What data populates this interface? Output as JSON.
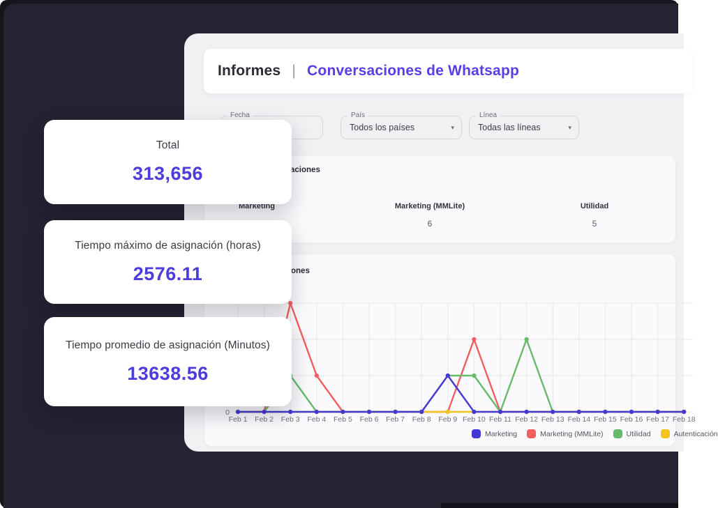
{
  "colors": {
    "background_outer": "#15151d",
    "background_panel": "#232331",
    "window_bg": "#f1f1f4",
    "card_bg": "#fafafc",
    "accent_purple": "#5a3ce8",
    "value_purple": "#4b3cdb",
    "series_blue": "#4539d6",
    "series_red": "#f15e5e",
    "series_green": "#66bb6a",
    "series_yellow": "#f2c41c"
  },
  "header": {
    "title_left": "Informes",
    "title_separator": "|",
    "title_right": "Conversaciones de Whatsapp"
  },
  "filters": {
    "fecha": {
      "label": "Fecha",
      "value": ""
    },
    "pais": {
      "label": "País",
      "value": "Todos los países",
      "arrow": "▾"
    },
    "linea": {
      "label": "Línea",
      "value": "Todas las líneas",
      "arrow": "▾"
    }
  },
  "stats_cards": [
    {
      "label": "Total",
      "value": "313,656"
    },
    {
      "label": "Tiempo máximo de asignación (horas)",
      "value": "2576.11"
    },
    {
      "label": "Tiempo promedio de asignación (Minutos)",
      "value": "13638.56"
    }
  ],
  "table": {
    "title": "Conversaciones",
    "columns": [
      {
        "header": "Marketing",
        "value": ""
      },
      {
        "header": "Marketing (MMLite)",
        "value": "6"
      },
      {
        "header": "Utilidad",
        "value": "5"
      }
    ]
  },
  "chart_section": {
    "title": "Conversaciones"
  },
  "chart_data": {
    "type": "line",
    "title": "Conversaciones",
    "categories": [
      "Feb 1",
      "Feb 2",
      "Feb 3",
      "Feb 4",
      "Feb 5",
      "Feb 6",
      "Feb 7",
      "Feb 8",
      "Feb 9",
      "Feb 10",
      "Feb 11",
      "Feb 12",
      "Feb 13",
      "Feb 14",
      "Feb 15",
      "Feb 16",
      "Feb 17",
      "Feb 18"
    ],
    "series": [
      {
        "name": "Marketing",
        "color": "#4539d6",
        "values": [
          0,
          0,
          0,
          0,
          0,
          0,
          0,
          0,
          2,
          0,
          0,
          0,
          0,
          0,
          0,
          0,
          0,
          0
        ]
      },
      {
        "name": "Marketing (MMLite)",
        "color": "#f15e5e",
        "values": [
          0,
          0,
          6,
          2,
          0,
          0,
          0,
          0,
          0,
          4,
          0,
          0,
          0,
          0,
          0,
          0,
          0,
          0
        ]
      },
      {
        "name": "Utilidad",
        "color": "#66bb6a",
        "values": [
          0,
          0,
          2,
          0,
          0,
          0,
          0,
          0,
          2,
          2,
          0,
          4,
          0,
          0,
          0,
          0,
          0,
          0
        ]
      },
      {
        "name": "Autenticación",
        "color": "#f2c41c",
        "values": [
          0,
          0,
          0,
          0,
          0,
          0,
          0,
          0,
          0,
          0,
          0,
          0,
          0,
          0,
          0,
          0,
          0,
          0
        ]
      }
    ],
    "z_order": [
      1,
      2,
      3,
      0
    ],
    "ylim": [
      0,
      6
    ],
    "ytick_step": 2,
    "visible_y_labels": [
      "0"
    ],
    "grid": true,
    "legend_position": "bottom-right"
  }
}
